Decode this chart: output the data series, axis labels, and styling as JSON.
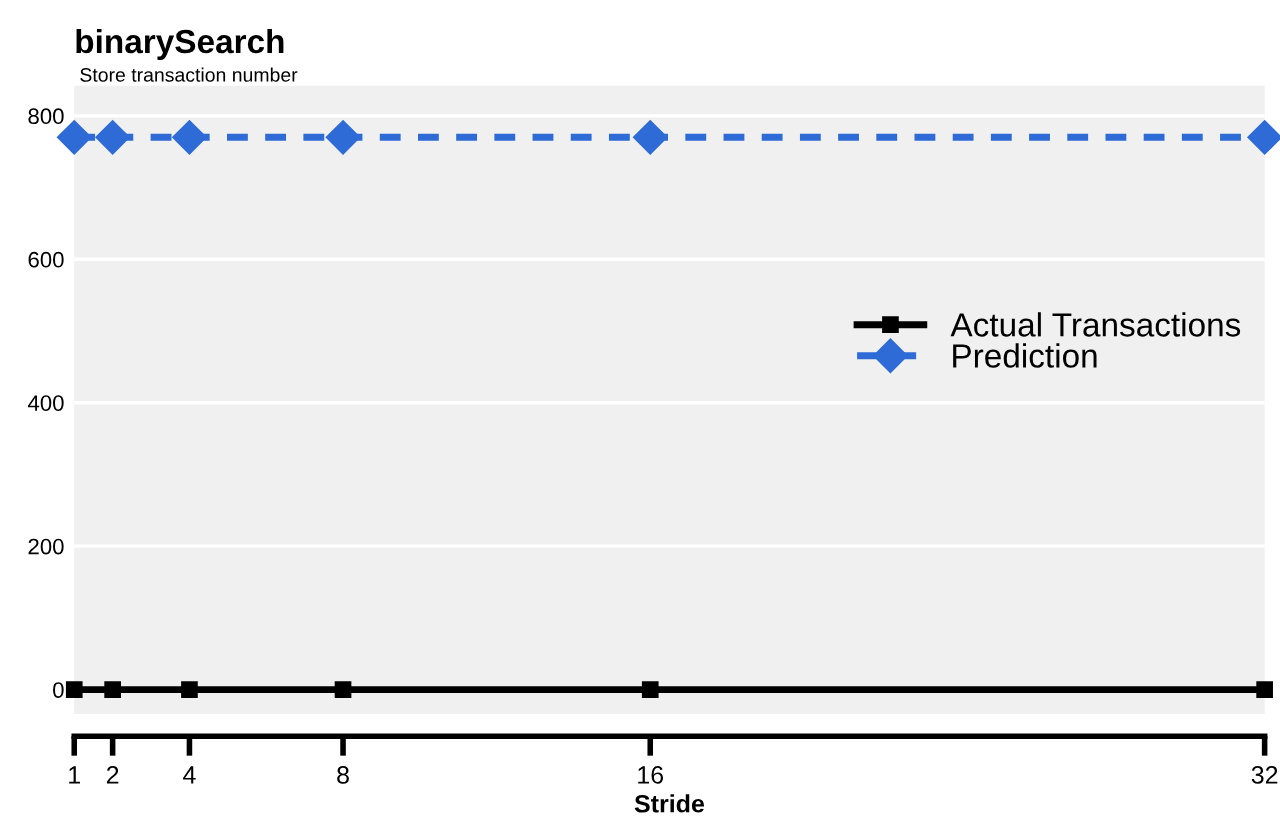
{
  "chart_data": {
    "type": "line",
    "title": "binarySearch",
    "subtitle": "Store transaction number",
    "xlabel": "Stride",
    "x": [
      1,
      2,
      4,
      8,
      16,
      32
    ],
    "series": [
      {
        "name": "Actual Transactions",
        "color": "#000000",
        "values": [
          0,
          0,
          0,
          0,
          0,
          0
        ],
        "marker": "square",
        "line_style": "solid"
      },
      {
        "name": "Prediction",
        "color": "#2e6bd6",
        "values": [
          770,
          770,
          770,
          770,
          770,
          770
        ],
        "marker": "diamond",
        "line_style": "dashed"
      }
    ],
    "xlim": [
      1,
      32
    ],
    "ylim": [
      -34,
      842
    ],
    "xticks": [
      1,
      2,
      4,
      8,
      16,
      32
    ],
    "yticks": [
      0,
      200,
      400,
      600,
      800
    ],
    "grid": "y",
    "legend": "right"
  }
}
